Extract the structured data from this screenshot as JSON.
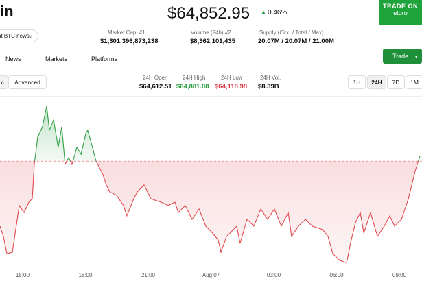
{
  "header": {
    "title": "in",
    "news_button": "at BTC news?",
    "price": "$64,852.95",
    "change": "0.46%",
    "stats": [
      {
        "label": "Market Cap. #1",
        "value": "$1,301,396,873,238"
      },
      {
        "label": "Volume (24h) #2",
        "value": "$8,362,101,435"
      },
      {
        "label": "Supply (Circ. / Total / Max)",
        "value": "20.07M / 20.07M / 21.00M"
      }
    ]
  },
  "ad": {
    "line1": "TRADE ON",
    "line2": "etoro"
  },
  "tabs": [
    "News",
    "Markets",
    "Platforms"
  ],
  "trade_button": "Trade",
  "view_toggle": [
    "c",
    "Advanced"
  ],
  "day_stats": [
    {
      "label": "24H Open",
      "value": "$64,612.51"
    },
    {
      "label": "24H High",
      "value": "$64,881.08"
    },
    {
      "label": "24H Low",
      "value": "$64,118.98"
    },
    {
      "label": "24H Vol.",
      "value": "$8.39B"
    }
  ],
  "ranges": [
    "1H",
    "24H",
    "7D",
    "1M"
  ],
  "chart_data": {
    "type": "line",
    "x": [
      13.92,
      14.08,
      14.25,
      14.51,
      14.84,
      15.07,
      15.3,
      15.46,
      15.56,
      15.72,
      15.95,
      16.15,
      16.28,
      16.48,
      16.7,
      16.87,
      17.03,
      17.2,
      17.36,
      17.59,
      17.79,
      18.02,
      18.11,
      18.34,
      18.51,
      18.84,
      19.0,
      19.16,
      19.49,
      19.82,
      19.98,
      20.31,
      20.48,
      20.8,
      21.13,
      21.62,
      21.95,
      22.28,
      22.44,
      22.77,
      23.1,
      23.43,
      23.75,
      24.08,
      24.34,
      24.48,
      24.74,
      24.9,
      25.23,
      25.39,
      25.72,
      26.05,
      26.38,
      26.7,
      27.03,
      27.36,
      27.69,
      27.85,
      28.18,
      28.51,
      28.84,
      29.33,
      29.59,
      29.82,
      30.15,
      30.48,
      30.7,
      30.9,
      31.13,
      31.3,
      31.62,
      31.95,
      32.28,
      32.54,
      32.77,
      33.1,
      33.43,
      33.59,
      33.75,
      33.98
    ],
    "values": [
      64297,
      64247,
      64163,
      64170,
      64397,
      64363,
      64413,
      64430,
      64597,
      64730,
      64780,
      64881,
      64763,
      64813,
      64680,
      64780,
      64597,
      64630,
      64597,
      64680,
      64647,
      64747,
      64763,
      64680,
      64613,
      64547,
      64497,
      64463,
      64447,
      64397,
      64347,
      64430,
      64463,
      64497,
      64430,
      64413,
      64397,
      64413,
      64363,
      64397,
      64330,
      64380,
      64297,
      64263,
      64230,
      64170,
      64247,
      64263,
      64297,
      64213,
      64330,
      64297,
      64380,
      64330,
      64380,
      64297,
      64363,
      64247,
      64297,
      64330,
      64297,
      64280,
      64247,
      64163,
      64130,
      64119,
      64230,
      64313,
      64363,
      64263,
      64363,
      64247,
      64297,
      64347,
      64297,
      64330,
      64430,
      64497,
      64563,
      64637
    ],
    "xlim": [
      13.92,
      34.08
    ],
    "ylim": [
      64080,
      64930
    ],
    "xticks": [
      {
        "value": 15,
        "label": "15:00"
      },
      {
        "value": 18,
        "label": "18:00"
      },
      {
        "value": 21,
        "label": "21:00"
      },
      {
        "value": 24,
        "label": "Aug 07"
      },
      {
        "value": 27,
        "label": "03:00"
      },
      {
        "value": 30,
        "label": "06:00"
      },
      {
        "value": 33,
        "label": "09:00"
      }
    ],
    "baseline": 64612.51,
    "above_color": "#2f9e44",
    "below_color": "#e0474c"
  }
}
